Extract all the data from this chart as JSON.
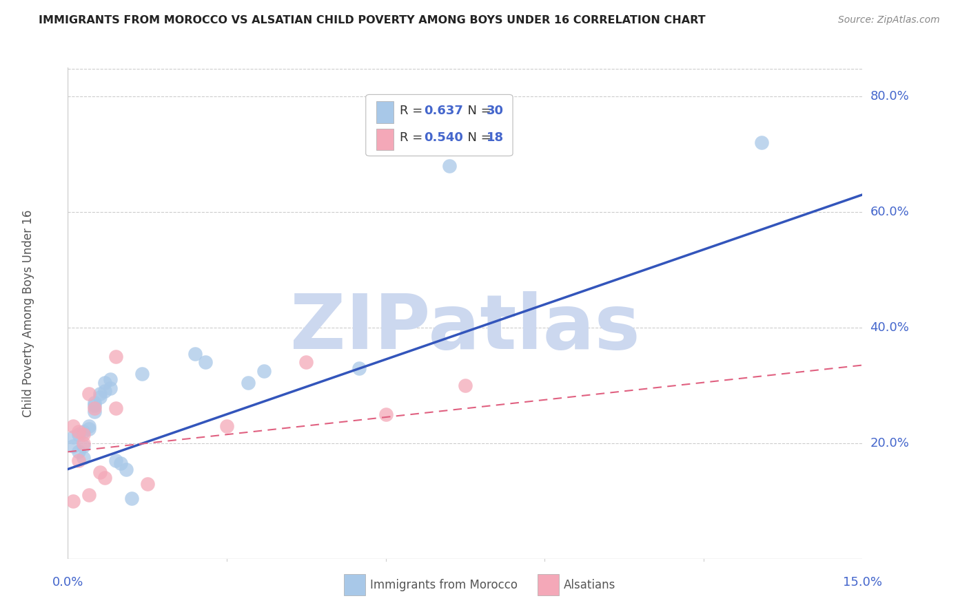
{
  "title": "IMMIGRANTS FROM MOROCCO VS ALSATIAN CHILD POVERTY AMONG BOYS UNDER 16 CORRELATION CHART",
  "source": "Source: ZipAtlas.com",
  "ylabel": "Child Poverty Among Boys Under 16",
  "xlim": [
    0.0,
    0.15
  ],
  "ylim": [
    0.0,
    0.85
  ],
  "blue_R": 0.637,
  "blue_N": 30,
  "pink_R": 0.54,
  "pink_N": 18,
  "blue_scatter_x": [
    0.001,
    0.001,
    0.002,
    0.002,
    0.003,
    0.003,
    0.003,
    0.004,
    0.004,
    0.005,
    0.005,
    0.005,
    0.006,
    0.006,
    0.007,
    0.007,
    0.008,
    0.008,
    0.009,
    0.01,
    0.011,
    0.012,
    0.014,
    0.024,
    0.026,
    0.034,
    0.037,
    0.055,
    0.072,
    0.131
  ],
  "blue_scatter_y": [
    0.195,
    0.21,
    0.185,
    0.215,
    0.22,
    0.195,
    0.175,
    0.23,
    0.225,
    0.27,
    0.255,
    0.265,
    0.285,
    0.28,
    0.305,
    0.29,
    0.31,
    0.295,
    0.17,
    0.165,
    0.155,
    0.105,
    0.32,
    0.355,
    0.34,
    0.305,
    0.325,
    0.33,
    0.68,
    0.72
  ],
  "pink_scatter_x": [
    0.001,
    0.001,
    0.002,
    0.002,
    0.003,
    0.003,
    0.004,
    0.004,
    0.005,
    0.006,
    0.007,
    0.009,
    0.009,
    0.015,
    0.03,
    0.045,
    0.06,
    0.075
  ],
  "pink_scatter_y": [
    0.23,
    0.1,
    0.22,
    0.17,
    0.2,
    0.215,
    0.11,
    0.285,
    0.26,
    0.15,
    0.14,
    0.35,
    0.26,
    0.13,
    0.23,
    0.34,
    0.25,
    0.3
  ],
  "blue_line_x": [
    0.0,
    0.15
  ],
  "blue_line_y": [
    0.155,
    0.63
  ],
  "pink_line_x": [
    0.0,
    0.15
  ],
  "pink_line_y": [
    0.185,
    0.335
  ],
  "blue_color": "#a8c8e8",
  "pink_color": "#f4a8b8",
  "blue_line_color": "#3355bb",
  "pink_line_color": "#e06080",
  "grid_color": "#cccccc",
  "watermark_color": "#ccd8ef",
  "tick_label_color": "#4466cc",
  "title_color": "#222222",
  "background_color": "#ffffff"
}
